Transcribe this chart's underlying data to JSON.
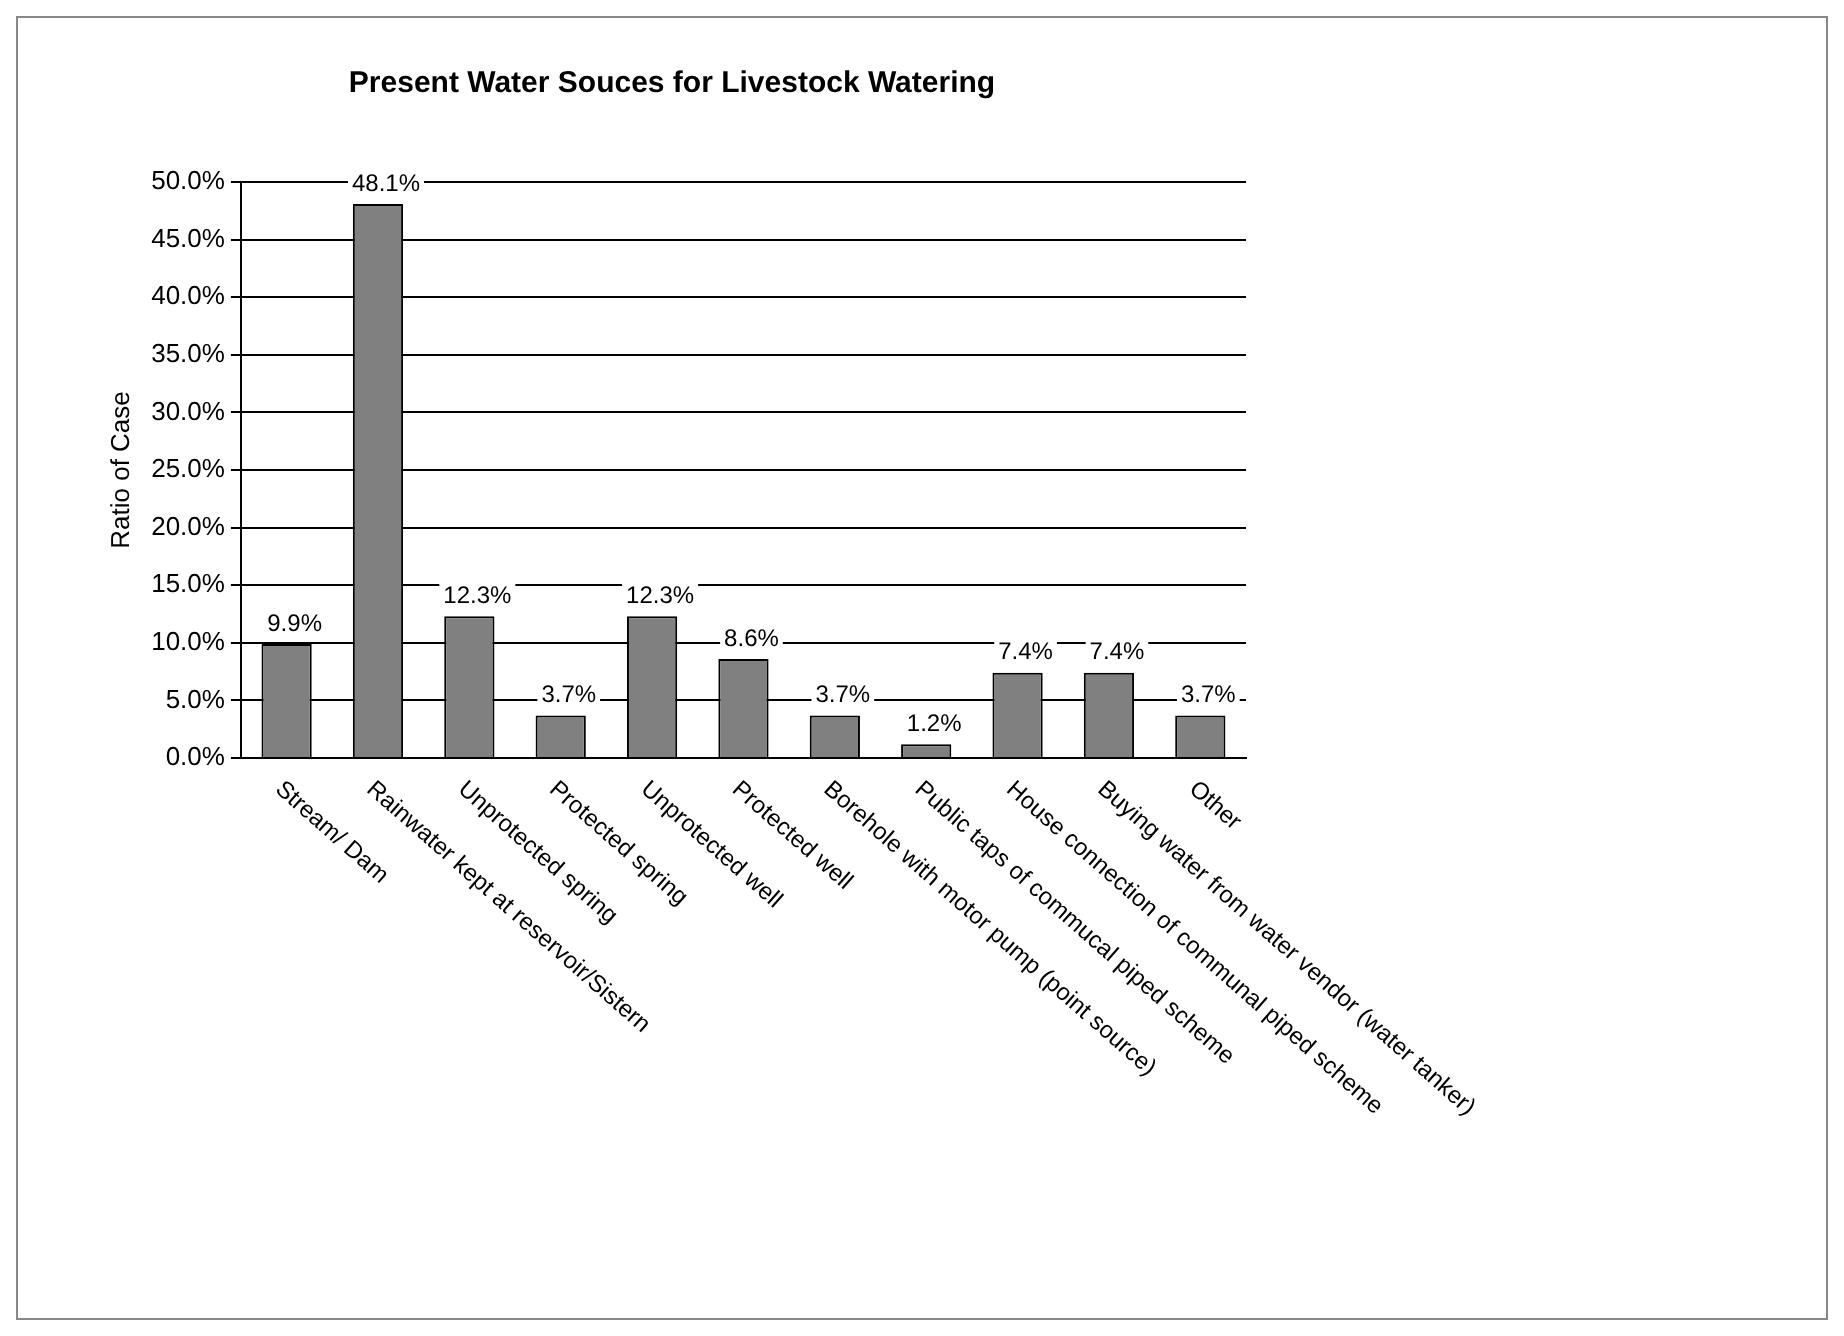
{
  "chart_data": {
    "type": "bar",
    "title": "Present Water Souces for Livestock Watering",
    "ylabel": "Ratio of Case",
    "categories": [
      "Stream/ Dam",
      "Rainwater kept at reservoir/Sistern",
      "Unprotected spring",
      "Protected spring",
      "Unprotected well",
      "Protected well",
      "Borehole with motor pump (point source)",
      "Public taps of commucal piped scheme",
      "House connection of communal piped scheme",
      "Buying water from water vendor (water tanker)",
      "Other"
    ],
    "values": [
      9.9,
      48.1,
      12.3,
      3.7,
      12.3,
      8.6,
      3.7,
      1.2,
      7.4,
      7.4,
      3.7
    ],
    "value_labels": [
      "9.9%",
      "48.1%",
      "12.3%",
      "3.7%",
      "12.3%",
      "8.6%",
      "3.7%",
      "1.2%",
      "7.4%",
      "7.4%",
      "3.7%"
    ],
    "color": "#808080",
    "ylim": [
      0,
      50
    ],
    "yticks": [
      {
        "value": 0,
        "label": "0.0%"
      },
      {
        "value": 5,
        "label": "5.0%"
      },
      {
        "value": 10,
        "label": "10.0%"
      },
      {
        "value": 15,
        "label": "15.0%"
      },
      {
        "value": 20,
        "label": "20.0%"
      },
      {
        "value": 25,
        "label": "25.0%"
      },
      {
        "value": 30,
        "label": "30.0%"
      },
      {
        "value": 35,
        "label": "35.0%"
      },
      {
        "value": 40,
        "label": "40.0%"
      },
      {
        "value": 45,
        "label": "45.0%"
      },
      {
        "value": 50,
        "label": "50.0%"
      }
    ],
    "grid": "y",
    "legend": false
  }
}
